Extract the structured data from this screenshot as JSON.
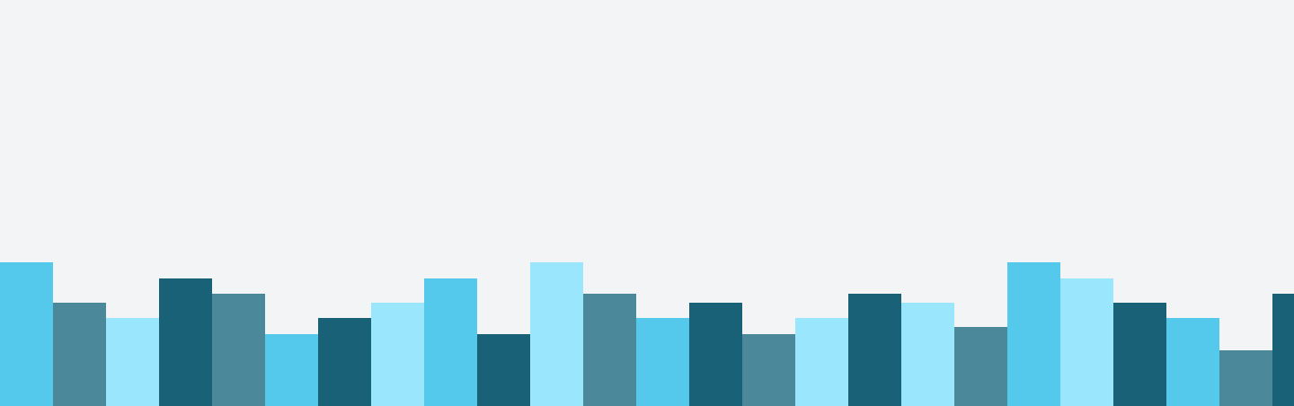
{
  "background": "#f3f4f6",
  "palette": {
    "sky": "#55c9ec",
    "steel": "#4a889a",
    "pale": "#9ae6fd",
    "teal": "#186176"
  },
  "bars": [
    {
      "color": "sky"
    },
    {
      "color": "steel"
    },
    {
      "color": "pale"
    },
    {
      "color": "teal"
    },
    {
      "color": "steel"
    },
    {
      "color": "sky"
    },
    {
      "color": "teal"
    },
    {
      "color": "pale"
    },
    {
      "color": "sky"
    },
    {
      "color": "teal"
    },
    {
      "color": "pale"
    },
    {
      "color": "steel"
    },
    {
      "color": "sky"
    },
    {
      "color": "teal"
    },
    {
      "color": "steel"
    },
    {
      "color": "pale"
    },
    {
      "color": "teal"
    },
    {
      "color": "pale"
    },
    {
      "color": "steel"
    },
    {
      "color": "sky"
    },
    {
      "color": "pale"
    },
    {
      "color": "teal"
    },
    {
      "color": "sky"
    },
    {
      "color": "steel"
    },
    {
      "color": "teal"
    }
  ]
}
